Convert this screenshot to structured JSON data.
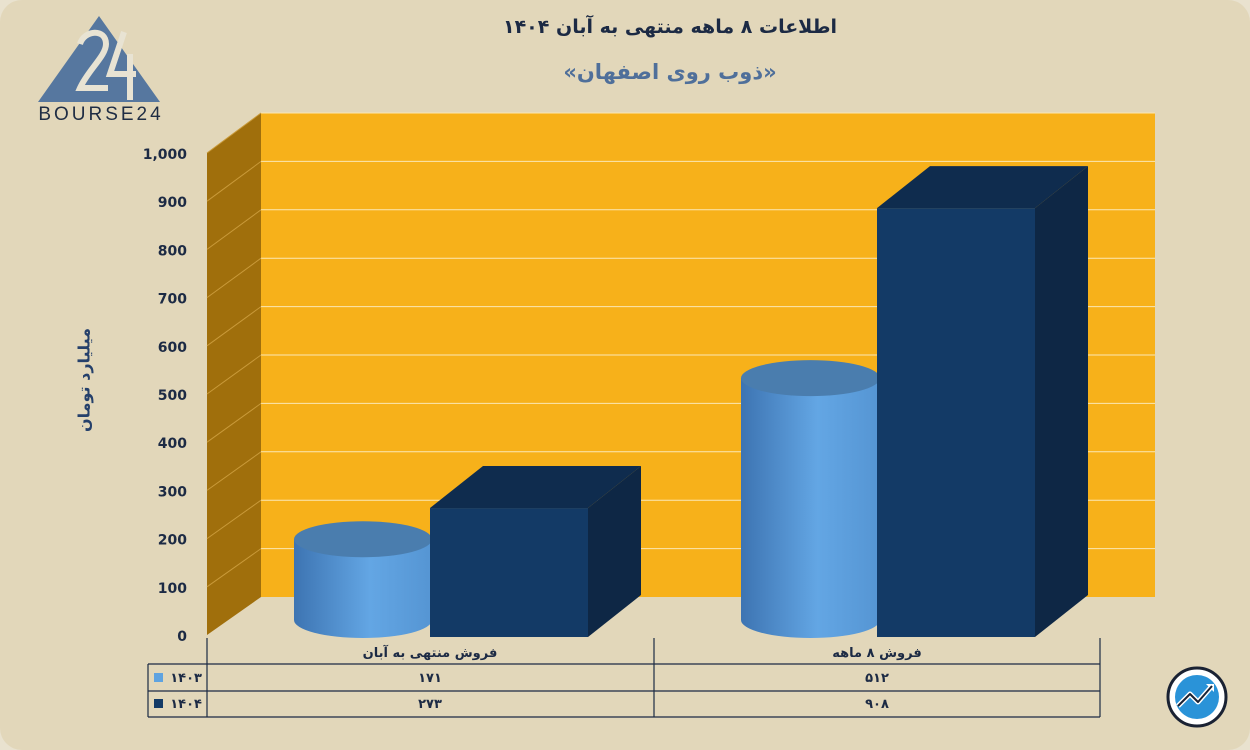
{
  "header": {
    "title": "اطلاعات ۸ ماهه منتهی به آبان ۱۴۰۴",
    "subtitle": "«ذوب روی اصفهان»"
  },
  "logo": {
    "text": "BOURSE24",
    "icon": "bourse24-triangle-logo"
  },
  "badge": {
    "icon": "trend-up-arrow-icon"
  },
  "colors": {
    "background": "#e2d7ba",
    "plot_back": "#f7b11a",
    "plot_side": "#a06f0c",
    "series_1403": "#5fa3e0",
    "series_1404": "#133a66"
  },
  "chart_data": {
    "type": "bar",
    "ylabel": "میلیارد تومان",
    "ylim": [
      0,
      1000
    ],
    "yticks": [
      0,
      100,
      200,
      300,
      400,
      500,
      600,
      700,
      800,
      900,
      1000
    ],
    "ytick_labels": [
      "0",
      "100",
      "200",
      "300",
      "400",
      "500",
      "600",
      "700",
      "800",
      "900",
      "1,000"
    ],
    "categories": [
      "فروش منتهی به  آبان",
      "فروش ۸  ماهه"
    ],
    "series": [
      {
        "name": "۱۴۰۳",
        "shape": "cylinder",
        "values": [
          171,
          512
        ],
        "labels": [
          "۱۷۱",
          "۵۱۲"
        ]
      },
      {
        "name": "۱۴۰۴",
        "shape": "box",
        "values": [
          273,
          908
        ],
        "labels": [
          "۲۷۳",
          "۹۰۸"
        ]
      }
    ],
    "grid": true,
    "data_table": true
  }
}
